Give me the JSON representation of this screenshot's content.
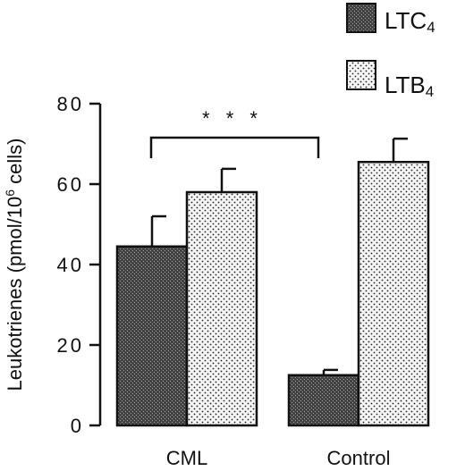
{
  "chart_data": {
    "type": "bar",
    "categories": [
      "CML",
      "Control"
    ],
    "series": [
      {
        "name": "LTC4",
        "name_main": "LTC",
        "name_sub": "4",
        "pattern": "dark-crosshatch",
        "values": [
          44.5,
          12.5
        ],
        "errors": [
          7.5,
          1.3
        ]
      },
      {
        "name": "LTB4",
        "name_main": "LTB",
        "name_sub": "4",
        "pattern": "light-dots",
        "values": [
          58.0,
          65.5
        ],
        "errors": [
          5.8,
          5.8
        ]
      }
    ],
    "ylabel": "Leukotrienes (pmol/10",
    "ylabel_sup": "6",
    "ylabel_end": " cells)",
    "ylim": [
      0,
      80
    ],
    "yticks": [
      0,
      20,
      40,
      60,
      80
    ],
    "legend_placement": "top-right",
    "annotation": {
      "text": "* * *",
      "between": [
        "CML",
        "Control"
      ]
    },
    "colors": {
      "dark_fill": "#444444",
      "light_fill": "#f2f2f2",
      "ink": "#111111"
    }
  }
}
